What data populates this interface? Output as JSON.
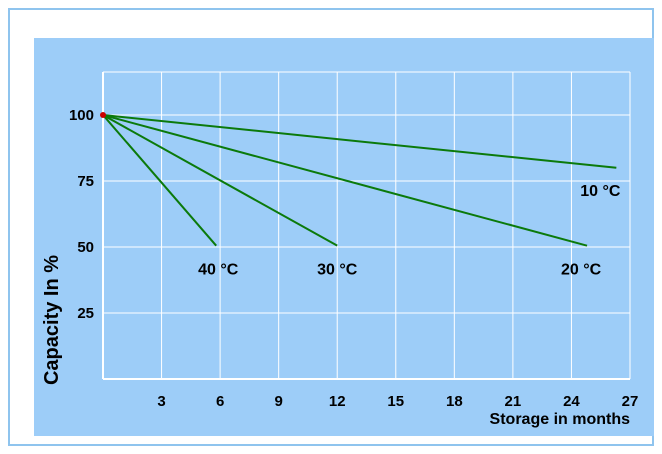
{
  "chart_data": {
    "type": "line",
    "title": "",
    "xlabel": "Storage in months",
    "ylabel": "Capacity In %",
    "xlim": [
      0,
      27
    ],
    "ylim": [
      0,
      100
    ],
    "x_ticks": [
      3,
      6,
      9,
      12,
      15,
      18,
      21,
      24,
      27
    ],
    "y_ticks": [
      25,
      50,
      75,
      100
    ],
    "grid": true,
    "legend": "none",
    "series": [
      {
        "name": "10 °C",
        "x": [
          0,
          26.3
        ],
        "y": [
          100,
          80
        ]
      },
      {
        "name": "20 °C",
        "x": [
          0,
          24.8
        ],
        "y": [
          100,
          50.5
        ]
      },
      {
        "name": "30 °C",
        "x": [
          0,
          12
        ],
        "y": [
          100,
          50.5
        ]
      },
      {
        "name": "40 °C",
        "x": [
          0,
          5.8
        ],
        "y": [
          100,
          50.5
        ]
      }
    ],
    "colors": {
      "background": "#9dcdf8",
      "line": "#0b7a0b",
      "grid": "#ffffff",
      "origin_point": "#cc0000"
    }
  }
}
